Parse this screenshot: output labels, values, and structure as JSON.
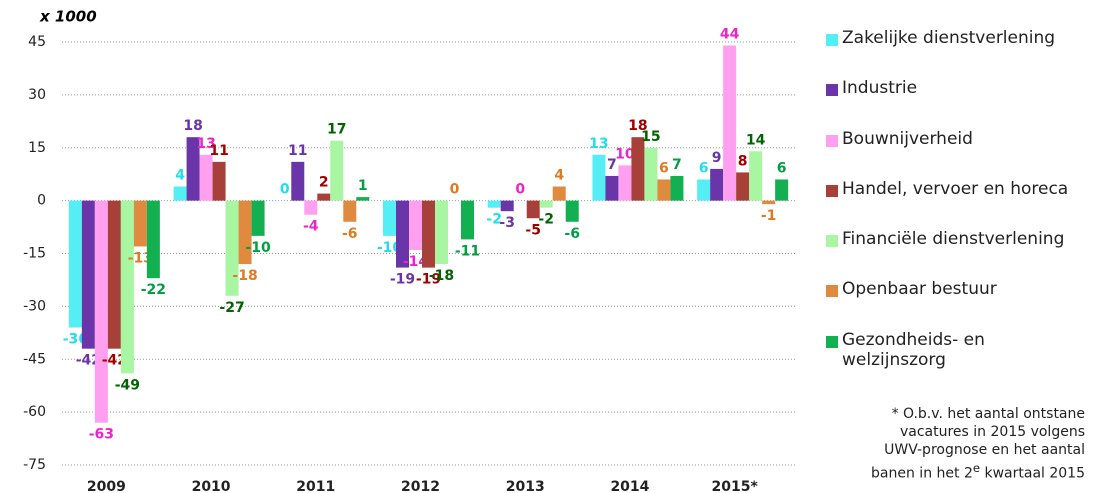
{
  "chart_data": {
    "type": "bar",
    "unit_label": "x 1000",
    "categories": [
      "2009",
      "2010",
      "2011",
      "2012",
      "2013",
      "2014",
      "2015*"
    ],
    "series": [
      {
        "name": "Zakelijke dienstverlening",
        "color": "#55eef5",
        "label_color": "#22dded",
        "values": [
          -36,
          4,
          0,
          -10,
          -2,
          13,
          6
        ]
      },
      {
        "name": "Industrie",
        "color": "#6a35a8",
        "label_color": "#6a35a8",
        "values": [
          -42,
          18,
          11,
          -19,
          -3,
          7,
          9
        ]
      },
      {
        "name": "Bouwnijverheid",
        "color": "#ff9ff0",
        "label_color": "#ee22cc",
        "values": [
          -63,
          13,
          -4,
          -14,
          0,
          10,
          44
        ]
      },
      {
        "name": "Handel, vervoer en horeca",
        "color": "#a8403a",
        "label_color": "#a00000",
        "values": [
          -42,
          11,
          2,
          -19,
          -5,
          18,
          8
        ]
      },
      {
        "name": "Financiële dienstverlening",
        "color": "#a8f5a2",
        "label_color": "#006400",
        "values": [
          -49,
          -27,
          17,
          -18,
          -2,
          15,
          14
        ]
      },
      {
        "name": "Openbaar bestuur",
        "color": "#e08a40",
        "label_color": "#e07a20",
        "values": [
          -13,
          -18,
          -6,
          0,
          4,
          6,
          -1
        ]
      },
      {
        "name": "Gezondheids- en welzijnszorg",
        "color": "#12b050",
        "label_color": "#00a040",
        "values": [
          -22,
          -10,
          1,
          -11,
          -6,
          7,
          6
        ]
      }
    ],
    "ylim": [
      -75,
      45
    ],
    "yticks": [
      -75,
      -60,
      -45,
      -30,
      -15,
      0,
      15,
      30,
      45
    ],
    "grid": true,
    "legend": "right"
  },
  "footnote": {
    "lines": [
      "* O.b.v. het aantal ontstane",
      "vacatures in 2015 volgens",
      "UWV-prognose en het aantal"
    ],
    "last": [
      "banen in het 2",
      "e",
      " kwartaal 2015"
    ]
  }
}
